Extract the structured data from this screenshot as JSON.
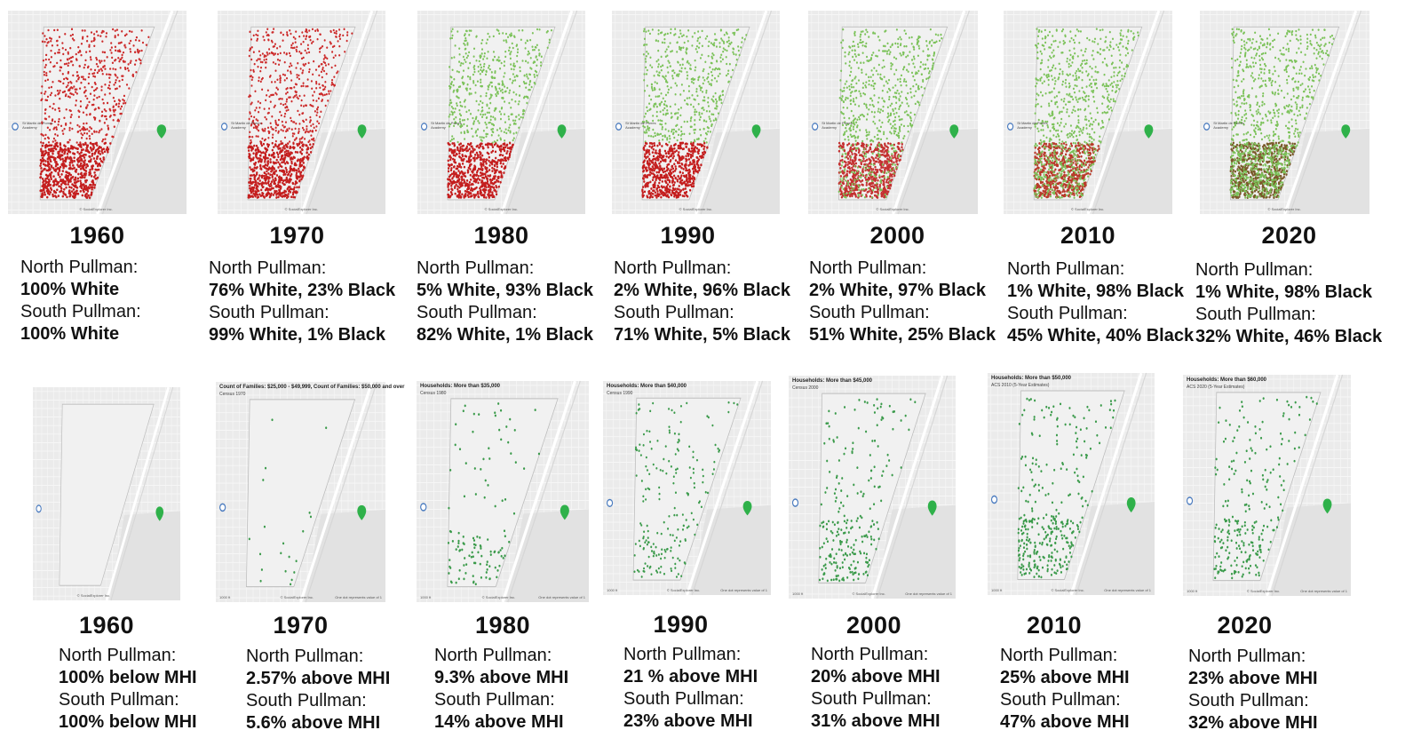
{
  "race_row": [
    {
      "year": "1960",
      "north_label": "North Pullman:",
      "north_value": "100% White",
      "south_label": "South Pullman:",
      "south_value": "100% White",
      "north_color": "#cc2a2a",
      "south_color": "#c41e1e"
    },
    {
      "year": "1970",
      "north_label": "North Pullman:",
      "north_value": "76% White, 23% Black",
      "south_label": "South Pullman:",
      "south_value": "99% White, 1% Black",
      "north_color": "#cc2a2a",
      "south_color": "#c41e1e"
    },
    {
      "year": "1980",
      "north_label": "North Pullman:",
      "north_value": "5% White, 93% Black",
      "south_label": "South Pullman:",
      "south_value": "82% White, 1% Black",
      "north_color": "#7cc25a",
      "south_color": "#c41e1e"
    },
    {
      "year": "1990",
      "north_label": "North Pullman:",
      "north_value": "2% White, 96% Black",
      "south_label": "South Pullman:",
      "south_value": "71% White, 5% Black",
      "north_color": "#7cc25a",
      "south_color": "#c41e1e"
    },
    {
      "year": "2000",
      "north_label": "North Pullman:",
      "north_value": "2% White, 97% Black",
      "south_label": "South Pullman:",
      "south_value": "51% White, 25% Black",
      "north_color": "#7cc25a",
      "south_color": "#c43030"
    },
    {
      "year": "2010",
      "north_label": "North Pullman:",
      "north_value": "1% White, 98% Black",
      "south_label": "South Pullman:",
      "south_value": "45% White, 40% Black",
      "north_color": "#7cc25a",
      "south_color": "#b83a2a"
    },
    {
      "year": "2020",
      "north_label": "North Pullman:",
      "north_value": "1% White, 98% Black",
      "south_label": "South Pullman:",
      "south_value": "32% White, 46% Black",
      "north_color": "#7cc25a",
      "south_color": "#7a5a2a"
    }
  ],
  "income_row": [
    {
      "year": "1960",
      "north_label": "North Pullman:",
      "north_value": "100% below MHI",
      "south_label": "South Pullman:",
      "south_value": "100% below MHI",
      "map_title": "",
      "map_subtitle": ""
    },
    {
      "year": "1970",
      "north_label": "North Pullman:",
      "north_value": "2.57% above MHI",
      "south_label": "South Pullman:",
      "south_value": "5.6% above MHI",
      "map_title": "Count of Families: $25,000 - $49,999, Count of Families: $50,000 and over",
      "map_subtitle": "Census 1970"
    },
    {
      "year": "1980",
      "north_label": "North Pullman:",
      "north_value": "9.3% above MHI",
      "south_label": "South Pullman:",
      "south_value": "14% above MHI",
      "map_title": "Households: More than $35,000",
      "map_subtitle": "Census 1980"
    },
    {
      "year": "1990",
      "north_label": "North Pullman:",
      "north_value": "21 % above MHI",
      "south_label": "South Pullman:",
      "south_value": "23% above MHI",
      "map_title": "Households: More than $40,000",
      "map_subtitle": "Census 1990"
    },
    {
      "year": "2000",
      "north_label": "North Pullman:",
      "north_value": "20% above MHI",
      "south_label": "South Pullman:",
      "south_value": "31% above MHI",
      "map_title": "Households: More than $45,000",
      "map_subtitle": "Census 2000"
    },
    {
      "year": "2010",
      "north_label": "North Pullman:",
      "north_value": "25% above MHI",
      "south_label": "South Pullman:",
      "south_value": "47% above MHI",
      "map_title": "Households: More than $50,000",
      "map_subtitle": "ACS 2010 (5-Year Estimates)"
    },
    {
      "year": "2020",
      "north_label": "North Pullman:",
      "north_value": "23% above MHI",
      "south_label": "South Pullman:",
      "south_value": "32% above MHI",
      "map_title": "Households: More than $60,000",
      "map_subtitle": "ACS 2020 (5-Year Estimates)"
    }
  ],
  "map_text": {
    "credit": "© SocialExplorer Inc.",
    "place": "St Martin de Porres Academy",
    "scale": "1000 ft",
    "legend_dot": "One dot represents value of 1"
  },
  "colors": {
    "income_dot": "#3a9a4a",
    "map_bg": "#ebebeb",
    "road": "#ffffff",
    "pin": "#2fb14a"
  }
}
